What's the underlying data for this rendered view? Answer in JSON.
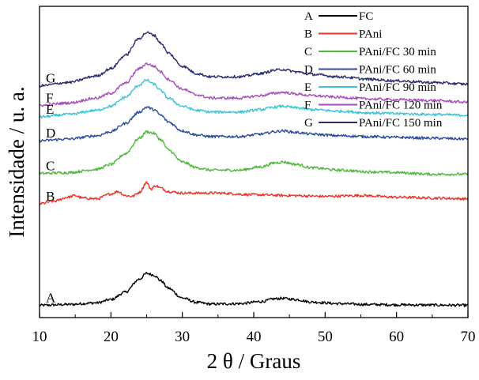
{
  "chart_data": {
    "type": "line",
    "xlabel": "2 θ / Graus",
    "ylabel": "Intensidade / u. a.",
    "xlim": [
      10,
      70
    ],
    "x_ticks": [
      "10",
      "20",
      "30",
      "40",
      "50",
      "60",
      "70"
    ],
    "y_ticks_labeled": false,
    "grid": false,
    "legend_position": "top-right",
    "series": [
      {
        "letter": "A",
        "name": "FC",
        "color": "#000000",
        "x": [
          10,
          14,
          18,
          20,
          22,
          24,
          25,
          26,
          27,
          28,
          30,
          32,
          34,
          38,
          41,
          43,
          44,
          46,
          48,
          52,
          56,
          60,
          65,
          70
        ],
        "y": [
          0.0,
          0.1,
          0.3,
          0.7,
          1.6,
          3.2,
          3.9,
          3.7,
          3.0,
          2.1,
          0.9,
          0.35,
          0.15,
          0.2,
          0.45,
          0.8,
          0.85,
          0.7,
          0.4,
          0.2,
          0.1,
          0.06,
          0.03,
          0.0
        ]
      },
      {
        "letter": "B",
        "name": "PAni",
        "color": "#e8352a",
        "x": [
          10,
          12,
          14,
          15,
          16,
          18,
          20,
          21,
          22,
          23,
          24,
          25,
          25.6,
          26.3,
          27,
          28,
          30,
          35,
          40,
          45,
          50,
          55,
          60,
          65,
          70
        ],
        "y": [
          12.4,
          12.7,
          13.2,
          13.4,
          13.1,
          13.0,
          13.6,
          13.9,
          13.4,
          13.3,
          13.8,
          15.0,
          14.2,
          14.6,
          14.3,
          13.9,
          13.7,
          13.7,
          13.5,
          13.4,
          13.3,
          13.4,
          13.2,
          13.1,
          13.0
        ]
      },
      {
        "letter": "C",
        "name": "PAni/FC 30 min",
        "color": "#4db83a",
        "x": [
          10,
          14,
          18,
          20,
          22,
          24,
          25,
          26,
          27,
          28,
          30,
          32,
          34,
          38,
          41,
          43,
          44,
          46,
          48,
          52,
          56,
          60,
          65,
          70
        ],
        "y": [
          16.1,
          16.2,
          16.6,
          17.2,
          18.5,
          20.4,
          21.2,
          21.0,
          20.2,
          19.0,
          17.5,
          16.8,
          16.5,
          16.5,
          16.9,
          17.4,
          17.5,
          17.2,
          16.8,
          16.5,
          16.3,
          16.2,
          16.0,
          16.0
        ]
      },
      {
        "letter": "D",
        "name": "PAni/FC 60 min",
        "color": "#2d4a9e",
        "x": [
          10,
          14,
          18,
          20,
          22,
          24,
          25,
          26,
          27,
          28,
          30,
          32,
          34,
          38,
          41,
          43,
          44,
          46,
          48,
          52,
          56,
          60,
          65,
          70
        ],
        "y": [
          20.1,
          20.3,
          20.7,
          21.2,
          22.2,
          23.6,
          24.2,
          23.9,
          23.2,
          22.4,
          21.3,
          20.8,
          20.6,
          20.6,
          20.9,
          21.2,
          21.3,
          21.1,
          20.9,
          20.7,
          20.6,
          20.5,
          20.4,
          20.3
        ]
      },
      {
        "letter": "E",
        "name": "PAni/FC 90 min",
        "color": "#3cc4d4",
        "x": [
          10,
          14,
          18,
          20,
          22,
          24,
          25,
          26,
          27,
          28,
          30,
          32,
          34,
          38,
          41,
          43,
          44,
          46,
          48,
          52,
          56,
          60,
          65,
          70
        ],
        "y": [
          23.0,
          23.3,
          23.8,
          24.3,
          25.4,
          26.9,
          27.5,
          27.0,
          26.2,
          25.3,
          24.3,
          23.8,
          23.6,
          23.6,
          23.9,
          24.2,
          24.3,
          24.1,
          23.9,
          23.7,
          23.5,
          23.4,
          23.3,
          23.2
        ]
      },
      {
        "letter": "F",
        "name": "PAni/FC 120 min",
        "color": "#a64dba",
        "x": [
          10,
          14,
          18,
          20,
          22,
          24,
          25,
          26,
          27,
          28,
          30,
          32,
          34,
          38,
          41,
          43,
          44,
          46,
          48,
          52,
          56,
          60,
          65,
          70
        ],
        "y": [
          24.4,
          24.7,
          25.3,
          25.9,
          27.1,
          28.9,
          29.5,
          29.2,
          28.5,
          27.6,
          26.4,
          25.7,
          25.3,
          25.3,
          25.6,
          25.9,
          26.0,
          25.8,
          25.6,
          25.4,
          25.2,
          25.1,
          25.0,
          24.8
        ]
      },
      {
        "letter": "G",
        "name": "PAni/FC 150 min",
        "color": "#2a2d6e",
        "x": [
          10,
          14,
          18,
          20,
          22,
          24,
          25,
          26,
          27,
          28,
          30,
          32,
          34,
          38,
          41,
          43,
          44,
          46,
          48,
          52,
          56,
          60,
          65,
          70
        ],
        "y": [
          26.8,
          27.2,
          28.0,
          28.9,
          30.5,
          32.6,
          33.3,
          33.0,
          32.0,
          30.8,
          29.2,
          28.3,
          27.9,
          27.9,
          28.3,
          28.7,
          28.8,
          28.5,
          28.2,
          27.9,
          27.6,
          27.4,
          27.2,
          27.0
        ]
      }
    ]
  }
}
